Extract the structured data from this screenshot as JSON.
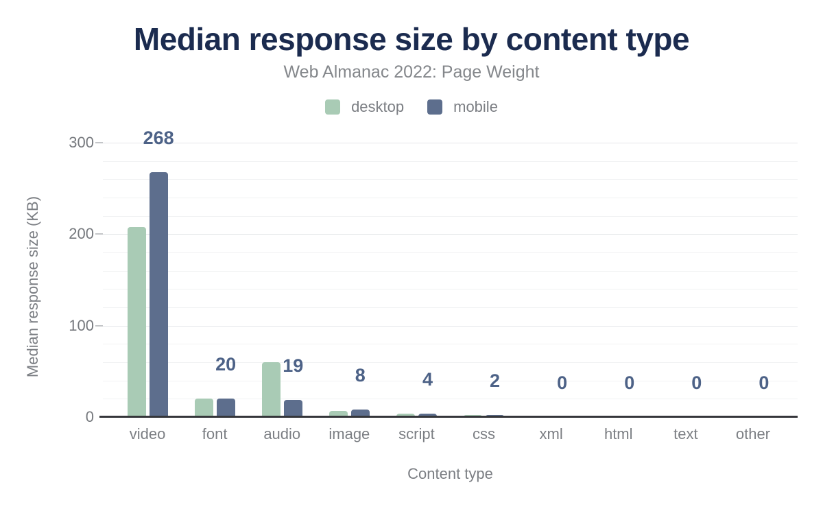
{
  "header": {
    "title": "Median response size by content type",
    "subtitle": "Web Almanac 2022: Page Weight"
  },
  "chart_data": {
    "type": "bar",
    "title": "Median response size by content type",
    "subtitle": "Web Almanac 2022: Page Weight",
    "categories": [
      "video",
      "font",
      "audio",
      "image",
      "script",
      "css",
      "xml",
      "html",
      "text",
      "other"
    ],
    "series": [
      {
        "name": "desktop",
        "color": "#a9cbb5",
        "values": [
          208,
          20,
          60,
          7,
          4,
          2,
          0,
          0,
          0,
          0
        ]
      },
      {
        "name": "mobile",
        "color": "#5d6e8d",
        "values": [
          268,
          20,
          19,
          8,
          4,
          2,
          0,
          0,
          0,
          0
        ]
      }
    ],
    "data_labels": {
      "series": "mobile",
      "values": [
        "268",
        "20",
        "19",
        "8",
        "4",
        "2",
        "0",
        "0",
        "0",
        "0"
      ]
    },
    "xlabel": "Content type",
    "ylabel": "Median response size (KB)",
    "ylim": [
      0,
      300
    ],
    "y_major_ticks": [
      0,
      100,
      200,
      300
    ],
    "y_minor_step": 20,
    "grid": true,
    "legend_position": "top",
    "colors": {
      "title": "#1b2b4f",
      "subtitle_text": "#84878b",
      "axis_text": "#7b7e83",
      "data_label": "#4d6287",
      "axis_line": "#35363a",
      "grid_major": "#e4e6e8",
      "grid_minor": "#f1f2f3"
    }
  }
}
